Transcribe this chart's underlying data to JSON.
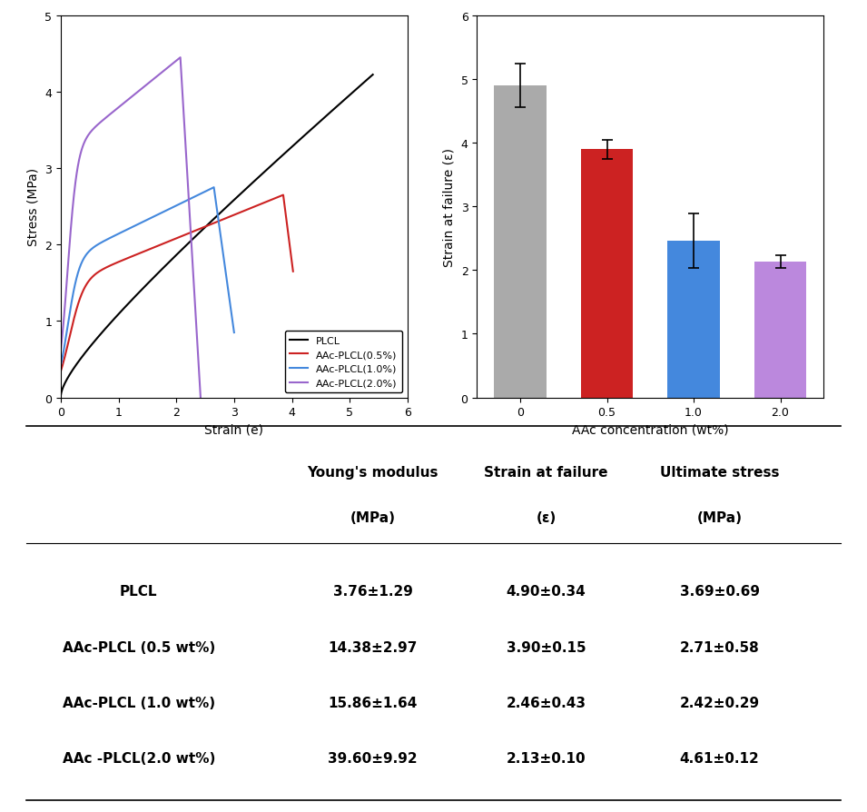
{
  "line_colors": {
    "PLCL": "#000000",
    "AAc05": "#cc2222",
    "AAc10": "#4488dd",
    "AAc20": "#9966cc"
  },
  "line_labels": [
    "PLCL",
    "AAc-PLCL(0.5%)",
    "AAc-PLCL(1.0%)",
    "AAc-PLCL(2.0%)"
  ],
  "line_plot_xlim": [
    0,
    6
  ],
  "line_plot_ylim": [
    0,
    5
  ],
  "line_xlabel": "Strain (e)",
  "line_ylabel": "Stress (MPa)",
  "bar_categories": [
    "0",
    "0.5",
    "1.0",
    "2.0"
  ],
  "bar_values": [
    4.9,
    3.9,
    2.46,
    2.13
  ],
  "bar_errors": [
    0.34,
    0.15,
    0.43,
    0.1
  ],
  "bar_colors": [
    "#aaaaaa",
    "#cc2222",
    "#4488dd",
    "#bb88dd"
  ],
  "bar_xlabel": "AAc concentration (wt%)",
  "bar_ylabel": "Strain at failure (ε)",
  "bar_ylim": [
    0,
    6
  ],
  "table_headers": [
    "",
    "Young's modulus",
    "Strain at failure",
    "Ultimate stress"
  ],
  "table_subheaders": [
    "",
    "(MPa)",
    "(ε)",
    "(MPa)"
  ],
  "table_rows": [
    [
      "PLCL",
      "3.76±1.29",
      "4.90±0.34",
      "3.69±0.69"
    ],
    [
      "AAc-PLCL (0.5 wt%)",
      "14.38±2.97",
      "3.90±0.15",
      "2.71±0.58"
    ],
    [
      "AAc-PLCL (1.0 wt%)",
      "15.86±1.64",
      "2.46±0.43",
      "2.42±0.29"
    ],
    [
      "AAc -PLCL(2.0 wt%)",
      "39.60±9.92",
      "2.13±0.10",
      "4.61±0.12"
    ]
  ]
}
